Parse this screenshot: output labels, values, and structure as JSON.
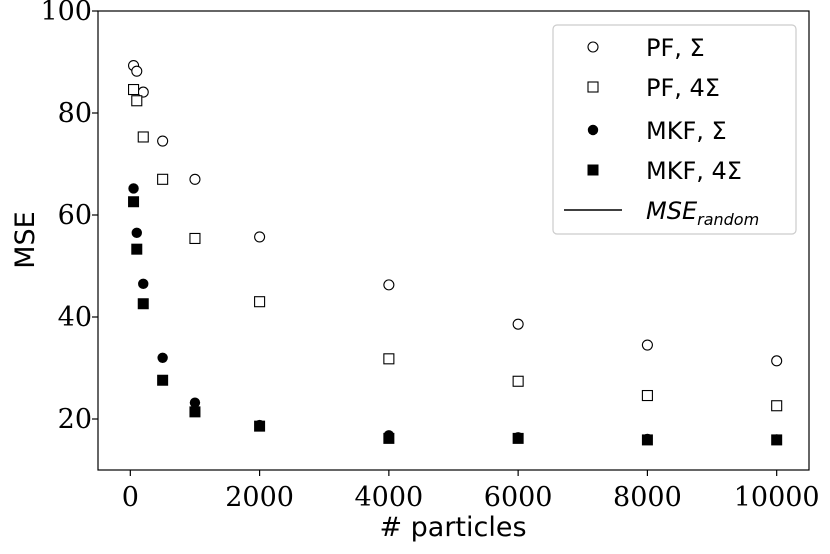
{
  "chart_data": {
    "type": "scatter",
    "xlabel": "# particles",
    "ylabel": "MSE",
    "xlim": [
      -500,
      10500
    ],
    "ylim": [
      10,
      100
    ],
    "x_ticks": [
      0,
      2000,
      4000,
      6000,
      8000,
      10000
    ],
    "x_tick_labels": [
      "0",
      "2000",
      "4000",
      "6000",
      "8000",
      "10000"
    ],
    "y_ticks": [
      20,
      40,
      60,
      80,
      100
    ],
    "y_tick_labels": [
      "20",
      "40",
      "60",
      "80",
      "100"
    ],
    "grid": false,
    "legend_position": "top-right",
    "series": [
      {
        "name": "PF, Σ",
        "marker": "circle-open",
        "x": [
          50,
          100,
          200,
          500,
          1000,
          2000,
          4000,
          6000,
          8000,
          10000
        ],
        "y": [
          89.3,
          88.2,
          84.1,
          74.5,
          67.0,
          55.7,
          46.3,
          38.6,
          34.5,
          31.4
        ]
      },
      {
        "name": "PF, 4Σ",
        "marker": "square-open",
        "x": [
          50,
          100,
          200,
          500,
          1000,
          2000,
          4000,
          6000,
          8000,
          10000
        ],
        "y": [
          84.6,
          82.4,
          75.3,
          67.0,
          55.4,
          43.0,
          31.8,
          27.4,
          24.6,
          22.6
        ]
      },
      {
        "name": "MKF, Σ",
        "marker": "circle-filled",
        "x": [
          50,
          100,
          200,
          500,
          1000,
          2000,
          4000,
          6000,
          8000,
          10000
        ],
        "y": [
          65.2,
          56.5,
          46.5,
          32.0,
          23.2,
          18.8,
          16.8,
          16.4,
          16.1,
          16.0
        ]
      },
      {
        "name": "MKF, 4Σ",
        "marker": "square-filled",
        "x": [
          50,
          100,
          200,
          500,
          1000,
          2000,
          4000,
          6000,
          8000,
          10000
        ],
        "y": [
          62.6,
          53.3,
          42.6,
          27.6,
          21.4,
          18.6,
          16.2,
          16.2,
          15.9,
          15.9
        ]
      },
      {
        "name": "MSE_random",
        "name_display": "MSE",
        "name_subscript": "random",
        "marker": "line",
        "x": [],
        "y": []
      }
    ]
  }
}
